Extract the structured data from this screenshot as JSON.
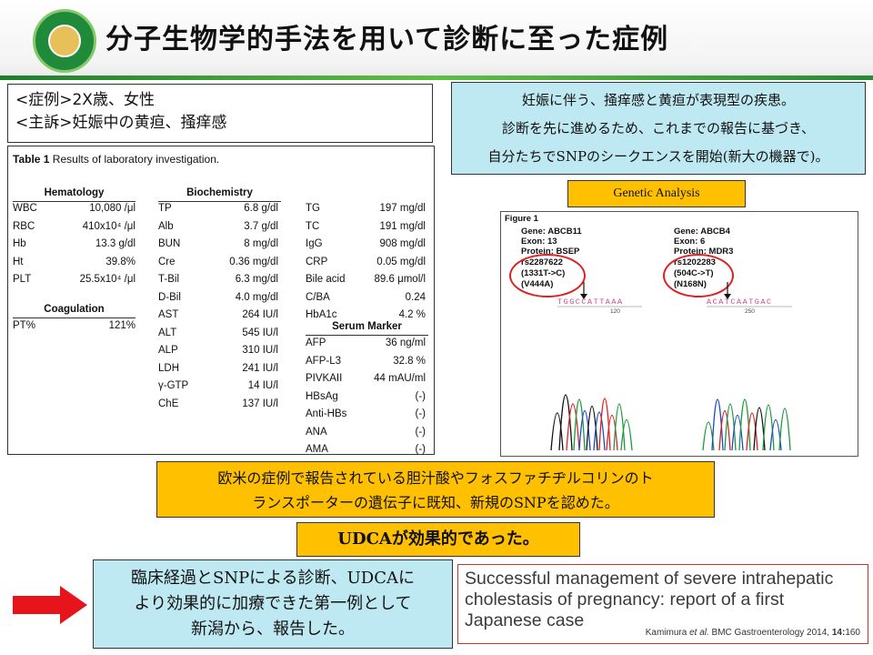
{
  "header": {
    "title": "分子生物学的手法を用いて診断に至った症例",
    "logo_icon": "university-seal-icon"
  },
  "case": {
    "line1": "<症例>2X歳、女性",
    "line2": "<主訴>妊娠中の黄疸、掻痒感"
  },
  "lab_table": {
    "caption_bold": "Table 1",
    "caption_rest": " Results of laboratory investigation.",
    "hematology": {
      "title": "Hematology",
      "rows": [
        {
          "name": "WBC",
          "value": "10,080 /μl"
        },
        {
          "name": "RBC",
          "value": "410x10⁴ /μl"
        },
        {
          "name": "Hb",
          "value": "13.3 g/dl"
        },
        {
          "name": "Ht",
          "value": "39.8%"
        },
        {
          "name": "PLT",
          "value": "25.5x10⁴ /μl"
        }
      ]
    },
    "coagulation": {
      "title": "Coagulation",
      "rows": [
        {
          "name": "PT%",
          "value": "121%"
        }
      ]
    },
    "biochemistry": {
      "title": "Biochemistry",
      "rows": [
        {
          "name": "TP",
          "value": "6.8 g/dl"
        },
        {
          "name": "Alb",
          "value": "3.7 g/dl"
        },
        {
          "name": "BUN",
          "value": "8 mg/dl"
        },
        {
          "name": "Cre",
          "value": "0.36 mg/dl"
        },
        {
          "name": "T-Bil",
          "value": "6.3 mg/dl"
        },
        {
          "name": "D-Bil",
          "value": "4.0 mg/dl"
        },
        {
          "name": "AST",
          "value": "264 IU/l"
        },
        {
          "name": "ALT",
          "value": "545 IU/l"
        },
        {
          "name": "ALP",
          "value": "310 IU/l"
        },
        {
          "name": "LDH",
          "value": "241 IU/l"
        },
        {
          "name": "γ-GTP",
          "value": "14 IU/l"
        },
        {
          "name": "ChE",
          "value": "137 IU/l"
        }
      ],
      "rows2": [
        {
          "name": "TG",
          "value": "197 mg/dl"
        },
        {
          "name": "TC",
          "value": "191 mg/dl"
        },
        {
          "name": "IgG",
          "value": "908 mg/dl"
        },
        {
          "name": "CRP",
          "value": "0.05 mg/dl"
        },
        {
          "name": "Bile acid",
          "value": "89.6 μmol/l"
        },
        {
          "name": "C/BA",
          "value": "0.24"
        },
        {
          "name": "HbA1c",
          "value": "4.2 %"
        }
      ]
    },
    "serum_marker": {
      "title": "Serum Marker",
      "rows": [
        {
          "name": "AFP",
          "value": "36 ng/ml"
        },
        {
          "name": "AFP-L3",
          "value": "32.8 %"
        },
        {
          "name": "PIVKAII",
          "value": "44 mAU/ml"
        },
        {
          "name": "HBsAg",
          "value": "(-)"
        },
        {
          "name": "Anti-HBs",
          "value": "(-)"
        },
        {
          "name": "ANA",
          "value": "(-)"
        },
        {
          "name": "AMA",
          "value": "(-)"
        }
      ]
    }
  },
  "info_box": {
    "line1": "妊娠に伴う、掻痒感と黄疸が表現型の疾患。",
    "line2": "診断を先に進めるため、これまでの報告に基づき、",
    "line3": "自分たちでSNPのシークエンスを開始(新大の機器で)。"
  },
  "genetic_label": "Genetic Analysis",
  "figure": {
    "label": "Figure 1",
    "left": {
      "gene": "Gene: ABCB11",
      "exon": "Exon: 13",
      "protein": "Protein: BSEP",
      "rs": "rs2287622",
      "change": "(1331T->C)",
      "aa": "(V444A)",
      "sequence": "TGGCCATTAAA",
      "position": "120"
    },
    "right": {
      "gene": "Gene: ABCB4",
      "exon": "Exon: 6",
      "protein": "Protein: MDR3",
      "rs": "rs1202283",
      "change": "(504C->T)",
      "aa": "(N168N)",
      "sequence": "ACATCAATGAC",
      "position": "250"
    }
  },
  "mid_box": {
    "line1": "欧米の症例で報告されている胆汁酸やフォスファチヂルコリンのト",
    "line2": "ランスポーターの遺伝子に既知、新規のSNPを認めた。"
  },
  "udca_box": "UDCAが効果的であった。",
  "clinical_box": {
    "line1": "臨床経過とSNPによる診断、UDCAに",
    "line2": "より効果的に加療できた第一例として",
    "line3": "新潟から、報告した。"
  },
  "paper": {
    "title_line1": "Successful management of severe intrahepatic",
    "title_line2": "cholestasis of pregnancy: report of a first",
    "title_line3": "Japanese case",
    "cite_authors": "Kamimura ",
    "cite_etal": "et al.",
    "cite_journal": " BMC Gastroenterology 2014, ",
    "cite_vol": "14:",
    "cite_page": "160"
  },
  "colors": {
    "info_bg": "#bfe9f2",
    "highlight": "#ffc000",
    "accent_red": "#e02020",
    "header_green": "#2a8a35"
  }
}
